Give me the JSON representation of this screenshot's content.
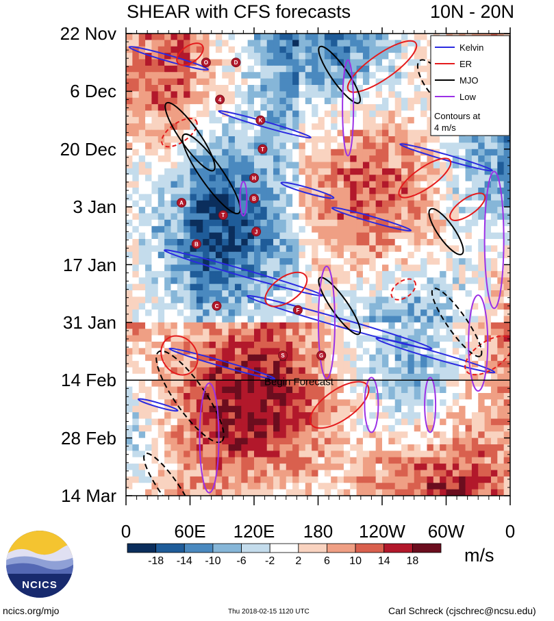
{
  "header": {
    "title": "SHEAR with CFS forecasts",
    "region": "10N - 20N"
  },
  "chart_data": {
    "type": "heatmap",
    "title": "SHEAR with CFS forecasts",
    "subtitle": "10N - 20N",
    "xlabel": "Longitude",
    "ylabel": "Date",
    "x_ticks": [
      "0",
      "60E",
      "120E",
      "180",
      "120W",
      "60W",
      "0"
    ],
    "x_range": [
      0,
      360
    ],
    "y_ticks": [
      "22 Nov",
      "6 Dec",
      "20 Dec",
      "3 Jan",
      "17 Jan",
      "31 Jan",
      "14 Feb",
      "28 Feb",
      "14 Mar"
    ],
    "y_range_days": [
      0,
      112
    ],
    "colorbar": {
      "units": "m/s",
      "labels": [
        "-18",
        "-14",
        "-10",
        "-6",
        "-2",
        "2",
        "6",
        "10",
        "14",
        "18"
      ],
      "colors": [
        "#0b2e5c",
        "#1f5c99",
        "#4a89bf",
        "#86b6d8",
        "#c4dcec",
        "#ffffff",
        "#f9d3c0",
        "#ef9f84",
        "#d9604e",
        "#b2182b",
        "#6b0d1e"
      ]
    },
    "legend": {
      "position": "top-right",
      "entries": [
        {
          "name": "Kelvin",
          "color": "#2a2ae0"
        },
        {
          "name": "ER",
          "color": "#e41a1c"
        },
        {
          "name": "MJO",
          "color": "#000000"
        },
        {
          "name": "Low",
          "color": "#9b30e6"
        }
      ],
      "note": "Contours at 4 m/s"
    },
    "forecast_marker": {
      "label": "Begin Forecast",
      "day": 84
    },
    "storm_labels": [
      {
        "label": "O",
        "lon": 75,
        "day": 7
      },
      {
        "label": "D",
        "lon": 103,
        "day": 7
      },
      {
        "label": "4",
        "lon": 88,
        "day": 16
      },
      {
        "label": "K",
        "lon": 126,
        "day": 21
      },
      {
        "label": "T",
        "lon": 128,
        "day": 28
      },
      {
        "label": "H",
        "lon": 120,
        "day": 35
      },
      {
        "label": "B",
        "lon": 120,
        "day": 40
      },
      {
        "label": "A",
        "lon": 52,
        "day": 41
      },
      {
        "label": "T",
        "lon": 91,
        "day": 44
      },
      {
        "label": "J",
        "lon": 122,
        "day": 48
      },
      {
        "label": "B",
        "lon": 66,
        "day": 51
      },
      {
        "label": "C",
        "lon": 85,
        "day": 66
      },
      {
        "label": "F",
        "lon": 161,
        "day": 67
      },
      {
        "label": "S",
        "lon": 147,
        "day": 78
      },
      {
        "label": "G",
        "lon": 183,
        "day": 78
      }
    ]
  },
  "colorbar_units": "m/s",
  "footer": {
    "left": "ncics.org/mjo",
    "center": "Thu 2018-02-15 1120 UTC",
    "right": "Carl Schreck (cjschrec@ncsu.edu)",
    "logo_text": "NCICS"
  }
}
